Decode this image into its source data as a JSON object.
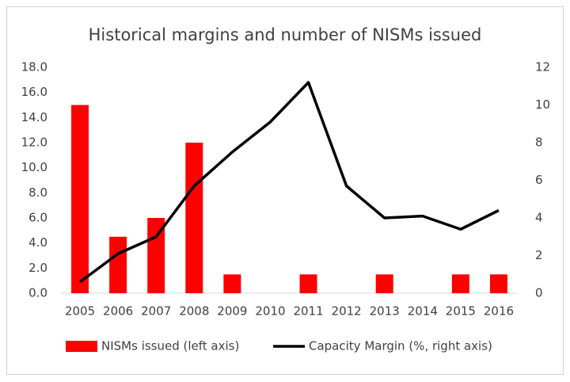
{
  "chart_data": {
    "type": "bar",
    "title": "Historical margins and number of NISMs issued",
    "categories": [
      "2005",
      "2006",
      "2007",
      "2008",
      "2009",
      "2010",
      "2011",
      "2012",
      "2013",
      "2014",
      "2015",
      "2016"
    ],
    "series": [
      {
        "name": "NISMs issued (left axis)",
        "type": "bar",
        "color": "#ff0000",
        "values": [
          15,
          4.5,
          6,
          12,
          1.5,
          0,
          1.5,
          0,
          1.5,
          0,
          1.5,
          1.5
        ]
      },
      {
        "name": "Capacity Margin (%, right axis)",
        "type": "line",
        "axis": "y2",
        "color": "#000000",
        "values": [
          0.6,
          2.1,
          3.0,
          5.7,
          7.5,
          9.1,
          11.2,
          5.7,
          4.0,
          4.1,
          3.4,
          4.4
        ]
      }
    ],
    "ylim": [
      0,
      18
    ],
    "yticks": [
      {
        "value": 0,
        "label": "0.0"
      },
      {
        "value": 2,
        "label": "2.0"
      },
      {
        "value": 4,
        "label": "4.0"
      },
      {
        "value": 6,
        "label": "6.0"
      },
      {
        "value": 8,
        "label": "8.0"
      },
      {
        "value": 10,
        "label": "10.0"
      },
      {
        "value": 12,
        "label": "12.0"
      },
      {
        "value": 14,
        "label": "14.0"
      },
      {
        "value": 16,
        "label": "16.0"
      },
      {
        "value": 18,
        "label": "18.0"
      }
    ],
    "y2lim": [
      0,
      12
    ],
    "y2ticks": [
      0,
      2,
      4,
      6,
      8,
      10,
      12
    ],
    "grid": false,
    "legend": "bottom"
  }
}
